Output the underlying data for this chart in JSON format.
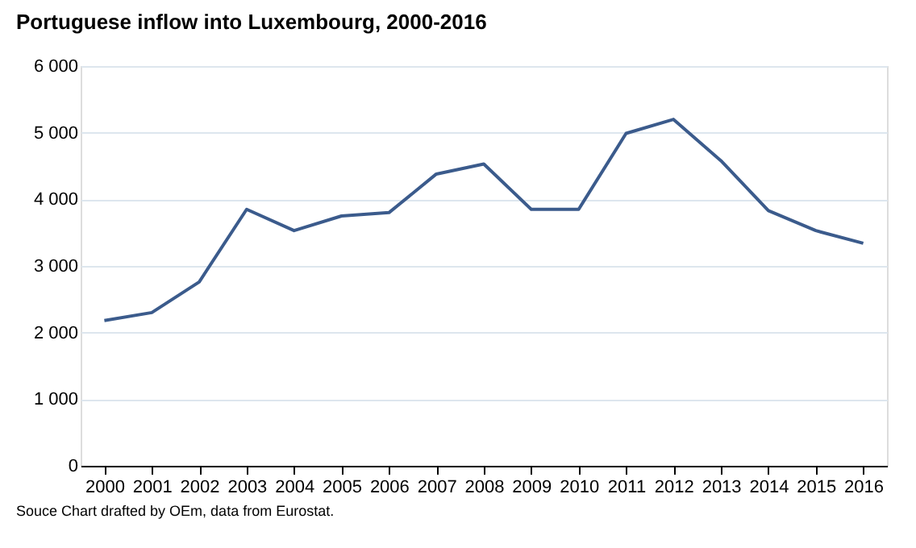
{
  "chart_data": {
    "type": "line",
    "title": "Portuguese  inflow into Luxembourg, 2000-2016",
    "categories": [
      "2000",
      "2001",
      "2002",
      "2003",
      "2004",
      "2005",
      "2006",
      "2007",
      "2008",
      "2009",
      "2010",
      "2011",
      "2012",
      "2013",
      "2014",
      "2015",
      "2016"
    ],
    "series": [
      {
        "color": "#3b5b8c",
        "values": [
          2180,
          2300,
          2760,
          3850,
          3530,
          3750,
          3800,
          4380,
          4530,
          3850,
          3850,
          4990,
          5200,
          4580,
          3830,
          3530,
          3340
        ]
      }
    ],
    "ylim": [
      0,
      6000
    ],
    "yticks": [
      0,
      {
        "value": 1000,
        "label": "1 000"
      },
      {
        "value": 2000,
        "label": "2 000"
      },
      {
        "value": 3000,
        "label": "3 000"
      },
      {
        "value": 4000,
        "label": "4 000"
      },
      {
        "value": 5000,
        "label": "5 000"
      },
      {
        "value": 6000,
        "label": "6 000"
      }
    ],
    "grid": "y",
    "marker": "none",
    "line_style": "solid",
    "annotations": [
      "Souce  Chart drafted by OEm, data from Eurostat."
    ]
  }
}
